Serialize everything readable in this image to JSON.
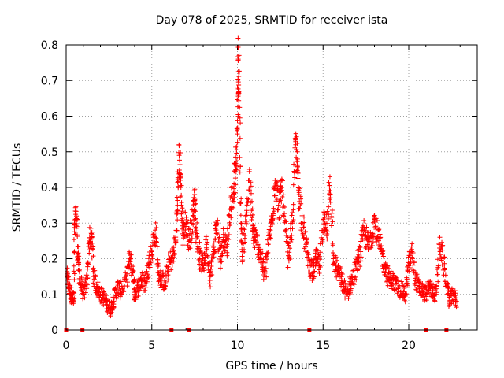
{
  "chart_data": {
    "type": "scatter",
    "title": "Day 078 of 2025, SRMTID for receiver ista",
    "xlabel": "GPS time / hours",
    "ylabel": "SRMTID / TECUs",
    "xlim": [
      0,
      24
    ],
    "ylim": [
      0,
      0.8
    ],
    "xticks": [
      0,
      5,
      10,
      15,
      20
    ],
    "yticks": [
      0,
      0.1,
      0.2,
      0.3,
      0.4,
      0.5,
      0.6,
      0.7,
      0.8
    ],
    "xtick_labels": [
      "0",
      "5",
      "10",
      "15",
      "20"
    ],
    "ytick_labels": [
      "0",
      "0.1",
      "0.2",
      "0.3",
      "0.4",
      "0.5",
      "0.6",
      "0.7",
      "0.8"
    ],
    "grid": true,
    "marker": "+",
    "color": "#ff0000",
    "series": [
      {
        "name": "SRMTID",
        "points": [
          [
            0.05,
            0.15
          ],
          [
            0.15,
            0.12
          ],
          [
            0.3,
            0.1
          ],
          [
            0.45,
            0.08
          ],
          [
            0.5,
            0.3
          ],
          [
            0.6,
            0.32
          ],
          [
            0.7,
            0.2
          ],
          [
            0.8,
            0.14
          ],
          [
            1.0,
            0.1
          ],
          [
            1.2,
            0.13
          ],
          [
            1.35,
            0.25
          ],
          [
            1.5,
            0.26
          ],
          [
            1.6,
            0.15
          ],
          [
            1.8,
            0.12
          ],
          [
            2.0,
            0.1
          ],
          [
            2.2,
            0.09
          ],
          [
            2.4,
            0.07
          ],
          [
            2.6,
            0.06
          ],
          [
            2.8,
            0.09
          ],
          [
            3.0,
            0.12
          ],
          [
            3.2,
            0.11
          ],
          [
            3.5,
            0.14
          ],
          [
            3.7,
            0.2
          ],
          [
            3.9,
            0.16
          ],
          [
            4.0,
            0.1
          ],
          [
            4.2,
            0.12
          ],
          [
            4.4,
            0.14
          ],
          [
            4.6,
            0.13
          ],
          [
            4.8,
            0.18
          ],
          [
            5.0,
            0.22
          ],
          [
            5.2,
            0.28
          ],
          [
            5.4,
            0.16
          ],
          [
            5.6,
            0.14
          ],
          [
            5.8,
            0.13
          ],
          [
            6.0,
            0.19
          ],
          [
            6.2,
            0.2
          ],
          [
            6.4,
            0.25
          ],
          [
            6.5,
            0.35
          ],
          [
            6.6,
            0.49
          ],
          [
            6.7,
            0.4
          ],
          [
            6.8,
            0.27
          ],
          [
            7.0,
            0.3
          ],
          [
            7.2,
            0.25
          ],
          [
            7.4,
            0.32
          ],
          [
            7.5,
            0.38
          ],
          [
            7.6,
            0.28
          ],
          [
            7.8,
            0.2
          ],
          [
            8.0,
            0.18
          ],
          [
            8.2,
            0.24
          ],
          [
            8.4,
            0.15
          ],
          [
            8.6,
            0.22
          ],
          [
            8.8,
            0.3
          ],
          [
            9.0,
            0.19
          ],
          [
            9.2,
            0.26
          ],
          [
            9.4,
            0.24
          ],
          [
            9.6,
            0.34
          ],
          [
            9.8,
            0.41
          ],
          [
            9.9,
            0.45
          ],
          [
            10.0,
            0.55
          ],
          [
            10.05,
            0.76
          ],
          [
            10.1,
            0.67
          ],
          [
            10.2,
            0.3
          ],
          [
            10.3,
            0.22
          ],
          [
            10.5,
            0.3
          ],
          [
            10.7,
            0.42
          ],
          [
            10.9,
            0.28
          ],
          [
            11.0,
            0.26
          ],
          [
            11.2,
            0.24
          ],
          [
            11.4,
            0.2
          ],
          [
            11.6,
            0.15
          ],
          [
            11.8,
            0.24
          ],
          [
            12.0,
            0.3
          ],
          [
            12.2,
            0.42
          ],
          [
            12.4,
            0.35
          ],
          [
            12.6,
            0.4
          ],
          [
            12.8,
            0.28
          ],
          [
            13.0,
            0.2
          ],
          [
            13.2,
            0.3
          ],
          [
            13.4,
            0.52
          ],
          [
            13.5,
            0.46
          ],
          [
            13.6,
            0.38
          ],
          [
            13.8,
            0.3
          ],
          [
            14.0,
            0.24
          ],
          [
            14.2,
            0.18
          ],
          [
            14.4,
            0.16
          ],
          [
            14.6,
            0.2
          ],
          [
            14.8,
            0.18
          ],
          [
            15.0,
            0.31
          ],
          [
            15.2,
            0.28
          ],
          [
            15.4,
            0.43
          ],
          [
            15.6,
            0.2
          ],
          [
            15.8,
            0.17
          ],
          [
            16.0,
            0.15
          ],
          [
            16.2,
            0.12
          ],
          [
            16.4,
            0.1
          ],
          [
            16.6,
            0.13
          ],
          [
            16.8,
            0.15
          ],
          [
            17.0,
            0.19
          ],
          [
            17.2,
            0.22
          ],
          [
            17.4,
            0.28
          ],
          [
            17.6,
            0.24
          ],
          [
            17.8,
            0.26
          ],
          [
            18.0,
            0.31
          ],
          [
            18.2,
            0.26
          ],
          [
            18.4,
            0.22
          ],
          [
            18.6,
            0.18
          ],
          [
            18.8,
            0.15
          ],
          [
            19.0,
            0.14
          ],
          [
            19.2,
            0.13
          ],
          [
            19.4,
            0.12
          ],
          [
            19.6,
            0.11
          ],
          [
            19.8,
            0.1
          ],
          [
            20.0,
            0.18
          ],
          [
            20.2,
            0.22
          ],
          [
            20.4,
            0.14
          ],
          [
            20.6,
            0.12
          ],
          [
            20.8,
            0.11
          ],
          [
            21.0,
            0.1
          ],
          [
            21.2,
            0.12
          ],
          [
            21.4,
            0.11
          ],
          [
            21.6,
            0.1
          ],
          [
            21.8,
            0.24
          ],
          [
            22.0,
            0.2
          ],
          [
            22.2,
            0.13
          ],
          [
            22.4,
            0.08
          ],
          [
            22.6,
            0.1
          ],
          [
            22.8,
            0.08
          ]
        ]
      }
    ],
    "baseline_points": [
      0.0,
      0.95,
      6.15,
      7.15,
      14.2,
      21.0,
      22.2
    ]
  }
}
